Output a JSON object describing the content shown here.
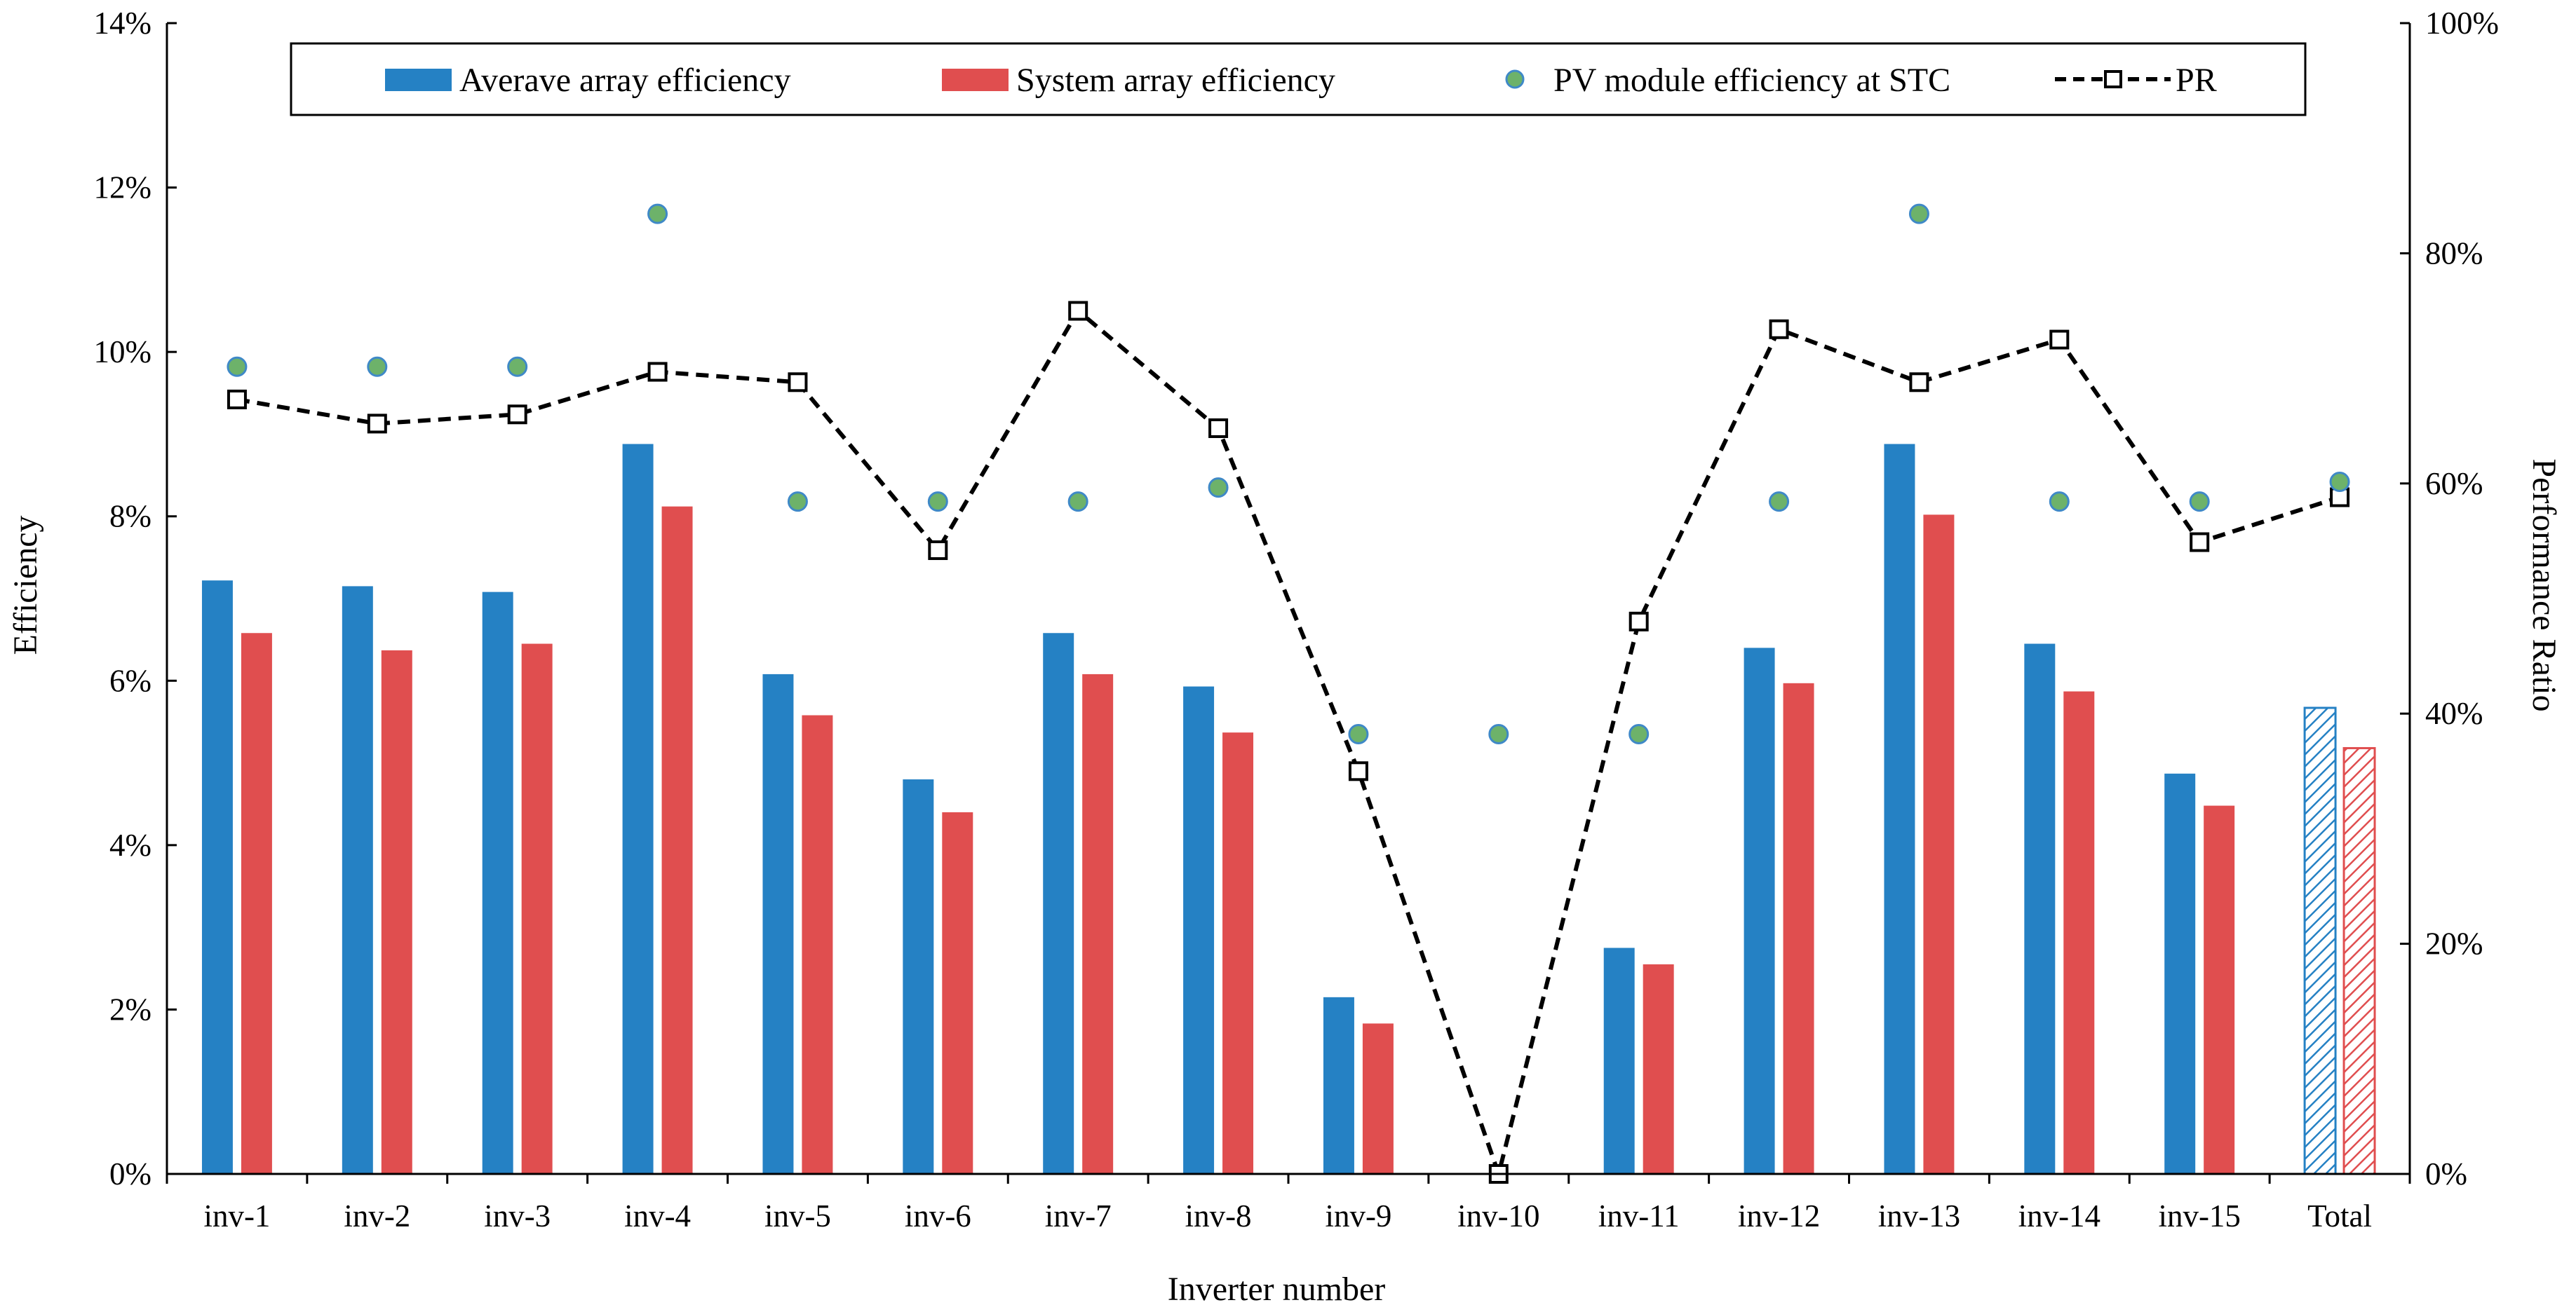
{
  "chart_data": {
    "type": "bar",
    "title": "",
    "xlabel": "Inverter number",
    "ylabel": "Efficiency",
    "y2label": "Performance Ratio",
    "ylim": [
      0,
      14
    ],
    "y2lim": [
      0,
      100
    ],
    "yticks": [
      "0%",
      "2%",
      "4%",
      "6%",
      "8%",
      "10%",
      "12%",
      "14%"
    ],
    "y2ticks": [
      "0%",
      "20%",
      "40%",
      "60%",
      "80%",
      "100%"
    ],
    "categories": [
      "inv-1",
      "inv-2",
      "inv-3",
      "inv-4",
      "inv-5",
      "inv-6",
      "inv-7",
      "inv-8",
      "inv-9",
      "inv-10",
      "inv-11",
      "inv-12",
      "inv-13",
      "inv-14",
      "inv-15",
      "Total"
    ],
    "series": [
      {
        "name": "Averave array efficiency",
        "kind": "bar",
        "axis": "left",
        "unit": "%",
        "values": [
          7.22,
          7.15,
          7.08,
          8.88,
          6.08,
          4.8,
          6.58,
          5.93,
          2.15,
          0,
          2.75,
          6.4,
          8.88,
          6.45,
          4.87,
          5.67
        ]
      },
      {
        "name": "System array efficiency",
        "kind": "bar",
        "axis": "left",
        "unit": "%",
        "values": [
          6.58,
          6.37,
          6.45,
          8.12,
          5.58,
          4.4,
          6.08,
          5.37,
          1.83,
          0,
          2.55,
          5.97,
          8.02,
          5.87,
          4.48,
          5.18
        ]
      },
      {
        "name": "PV module efficiency at STC",
        "kind": "scatter",
        "axis": "left",
        "unit": "%",
        "values": [
          9.82,
          9.82,
          9.82,
          11.68,
          8.18,
          8.18,
          8.18,
          8.35,
          5.35,
          5.35,
          5.35,
          8.18,
          11.68,
          8.18,
          8.18,
          8.42
        ]
      },
      {
        "name": "PR",
        "kind": "line",
        "axis": "right",
        "unit": "%",
        "values": [
          67.3,
          65.2,
          66.0,
          69.7,
          68.8,
          54.2,
          75.0,
          64.8,
          35.0,
          0,
          48.0,
          73.4,
          68.8,
          72.5,
          54.9,
          58.8
        ]
      }
    ],
    "hatched_category": "Total",
    "legend": {
      "position": "top",
      "border": true
    },
    "colors": {
      "avg": "#2581c4",
      "sys": "#e04e4f",
      "dot": "#6db26a",
      "dot_edge": "#3f89c7",
      "pr": "#000000",
      "axis": "#000000"
    }
  }
}
